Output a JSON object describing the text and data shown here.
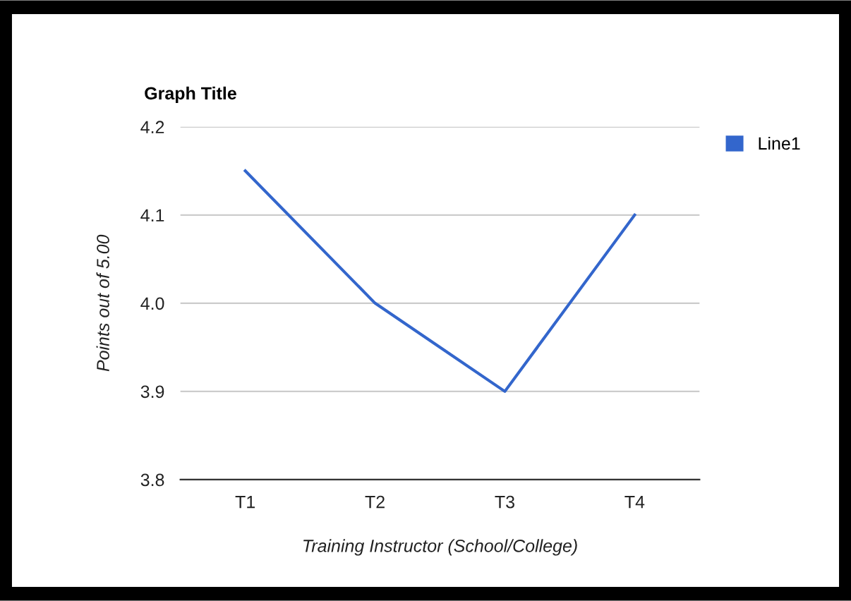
{
  "chart_data": {
    "type": "line",
    "title": "Graph Title",
    "xlabel": "Training Instructor (School/College)",
    "ylabel": "Points out of 5.00",
    "categories": [
      "T1",
      "T2",
      "T3",
      "T4"
    ],
    "series": [
      {
        "name": "Line1",
        "color": "#3366cc",
        "values": [
          4.15,
          4.0,
          3.9,
          4.1
        ]
      }
    ],
    "ylim": [
      3.8,
      4.2
    ],
    "yticks": [
      3.8,
      3.9,
      {
        "value": 4.0,
        "label": "4.0"
      },
      4.1,
      4.2
    ],
    "grid": "y",
    "legend": "top right",
    "marker": "none",
    "line_style": "solid"
  }
}
